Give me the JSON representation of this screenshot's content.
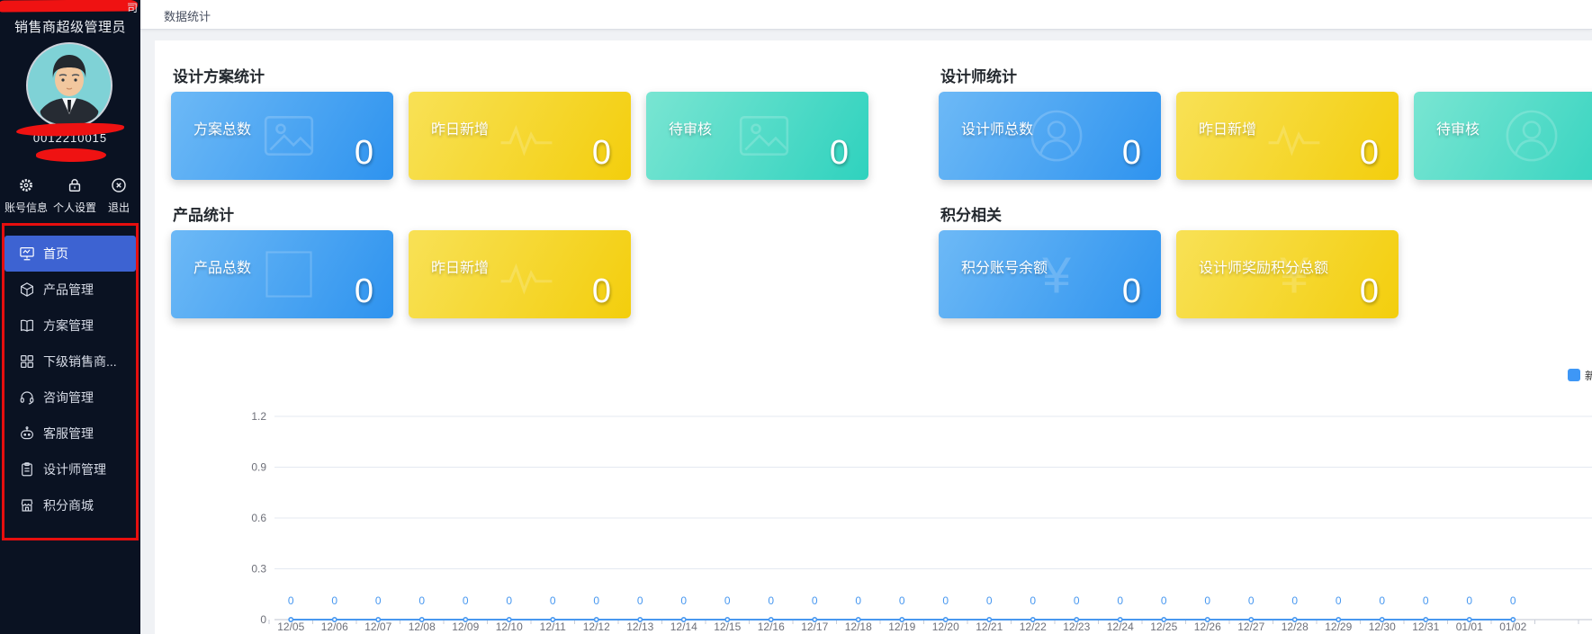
{
  "topbar": {
    "tab": "数据统计"
  },
  "sidebar": {
    "company_fragment": "司",
    "role_title": "销售商超级管理员",
    "account_number_partial": "0012210015",
    "actions": [
      {
        "id": "account-info",
        "icon": "gear-icon",
        "label": "账号信息"
      },
      {
        "id": "personal-settings",
        "icon": "lock-icon",
        "label": "个人设置"
      },
      {
        "id": "logout",
        "icon": "logout-icon",
        "label": "退出"
      }
    ],
    "menu": [
      {
        "id": "home",
        "icon": "home-board-icon",
        "label": "首页",
        "active": true
      },
      {
        "id": "product-management",
        "icon": "cube-icon",
        "label": "产品管理",
        "active": false
      },
      {
        "id": "plan-management",
        "icon": "book-icon",
        "label": "方案管理",
        "active": false
      },
      {
        "id": "sub-dealers",
        "icon": "grid-icon",
        "label": "下级销售商...",
        "active": false
      },
      {
        "id": "consultation-management",
        "icon": "headset-icon",
        "label": "咨询管理",
        "active": false
      },
      {
        "id": "customer-service",
        "icon": "chat-robot-icon",
        "label": "客服管理",
        "active": false
      },
      {
        "id": "designer-management",
        "icon": "clipboard-icon",
        "label": "设计师管理",
        "active": false
      },
      {
        "id": "points-mall",
        "icon": "mall-icon",
        "label": "积分商城",
        "active": false
      }
    ]
  },
  "annotations": {
    "menu_box_color": "#e60e0e",
    "scribble_color": "#ef1212"
  },
  "sections": [
    {
      "id": "design-plans",
      "title": "设计方案统计",
      "cards": [
        {
          "label": "方案总数",
          "value": "0",
          "theme": "blue",
          "icon": "image-watermark-icon"
        },
        {
          "label": "昨日新增",
          "value": "0",
          "theme": "yellow",
          "icon": "pulse-watermark-icon"
        },
        {
          "label": "待审核",
          "value": "0",
          "theme": "teal",
          "icon": "image-watermark-icon"
        }
      ]
    },
    {
      "id": "designers",
      "title": "设计师统计",
      "cards": [
        {
          "label": "设计师总数",
          "value": "0",
          "theme": "blue",
          "icon": "person-watermark-icon"
        },
        {
          "label": "昨日新增",
          "value": "0",
          "theme": "yellow",
          "icon": "pulse-watermark-icon"
        },
        {
          "label": "待审核",
          "value": "",
          "theme": "teal",
          "icon": "person-watermark-icon",
          "cut": true
        }
      ]
    },
    {
      "id": "products",
      "title": "产品统计",
      "cards": [
        {
          "label": "产品总数",
          "value": "0",
          "theme": "blue",
          "icon": "square-watermark-icon"
        },
        {
          "label": "昨日新增",
          "value": "0",
          "theme": "yellow",
          "icon": "pulse-watermark-icon"
        }
      ]
    },
    {
      "id": "points",
      "title": "积分相关",
      "cards": [
        {
          "label": "积分账号余额",
          "value": "0",
          "theme": "blue",
          "icon": "yen-watermark-icon"
        },
        {
          "label": "设计师奖励积分总额",
          "value": "0",
          "theme": "yellow",
          "icon": "yen-watermark-icon"
        }
      ]
    }
  ],
  "card_colors": {
    "blue": [
      "#6db9f6",
      "#2e93ef"
    ],
    "yellow": [
      "#f8e156",
      "#f3ce0d"
    ],
    "teal": [
      "#79e5d2",
      "#2fd2be"
    ]
  },
  "chart_data": {
    "type": "line",
    "x": [
      "12/05",
      "12/06",
      "12/07",
      "12/08",
      "12/09",
      "12/10",
      "12/11",
      "12/12",
      "12/13",
      "12/14",
      "12/15",
      "12/16",
      "12/17",
      "12/18",
      "12/19",
      "12/20",
      "12/21",
      "12/22",
      "12/23",
      "12/24",
      "12/25",
      "12/26",
      "12/27",
      "12/28",
      "12/29",
      "12/30",
      "12/31",
      "01/01",
      "01/02"
    ],
    "series": [
      {
        "name": "新",
        "color": "#3E97F6",
        "values": [
          0,
          0,
          0,
          0,
          0,
          0,
          0,
          0,
          0,
          0,
          0,
          0,
          0,
          0,
          0,
          0,
          0,
          0,
          0,
          0,
          0,
          0,
          0,
          0,
          0,
          0,
          0,
          0,
          0
        ]
      }
    ],
    "show_point_labels": true,
    "point_label_color": "#4898f0",
    "yticks": [
      0,
      0.3,
      0.6,
      0.9,
      1.2
    ],
    "ylim": [
      0,
      1.2
    ],
    "grid": true,
    "legend": {
      "position": "top-right",
      "visible_text": "新",
      "truncated": true
    }
  }
}
